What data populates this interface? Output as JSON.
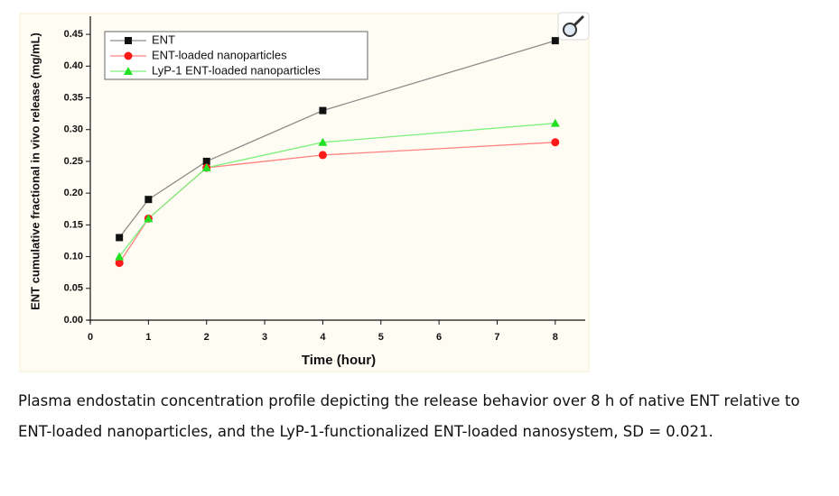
{
  "chart_data": {
    "type": "line",
    "xlabel": "Time (hour)",
    "ylabel": "ENT cumulative fractional in vivo release (mg/mL)",
    "x": [
      0.5,
      1,
      2,
      4,
      8
    ],
    "series": [
      {
        "name": "ENT",
        "color": "#111111",
        "line_color": "#8c8c8c",
        "marker": "square",
        "values": [
          0.13,
          0.19,
          0.25,
          0.33,
          0.44
        ]
      },
      {
        "name": "ENT-loaded nanoparticles",
        "color": "#ff1a1a",
        "line_color": "#ff8080",
        "marker": "circle",
        "values": [
          0.09,
          0.16,
          0.24,
          0.26,
          0.28
        ]
      },
      {
        "name": "LyP-1 ENT-loaded nanoparticles",
        "color": "#22e022",
        "line_color": "#7ef07e",
        "marker": "triangle",
        "values": [
          0.1,
          0.16,
          0.24,
          0.28,
          0.31
        ]
      }
    ],
    "xlim": [
      0,
      8.5
    ],
    "ylim": [
      0,
      0.47
    ],
    "xticks": [
      0,
      1,
      2,
      3,
      4,
      5,
      6,
      7,
      8
    ],
    "yticks": [
      {
        "value": 0,
        "label": "0.00"
      },
      {
        "value": 0.05,
        "label": "0.05"
      },
      {
        "value": 0.1,
        "label": "0.10"
      },
      {
        "value": 0.15,
        "label": "0.15"
      },
      {
        "value": 0.2,
        "label": "0.20"
      },
      {
        "value": 0.25,
        "label": "0.25"
      },
      {
        "value": 0.3,
        "label": "0.30"
      },
      {
        "value": 0.35,
        "label": "0.35"
      },
      {
        "value": 0.4,
        "label": "0.40"
      },
      {
        "value": 0.45,
        "label": "0.45"
      }
    ],
    "legend": "upper left"
  },
  "caption": "Plasma endostatin concentration profile depicting the release behavior over 8 h of native ENT relative to ENT-loaded nanoparticles, and the LyP-1-functionalized ENT-loaded nanosystem, SD = 0.021."
}
